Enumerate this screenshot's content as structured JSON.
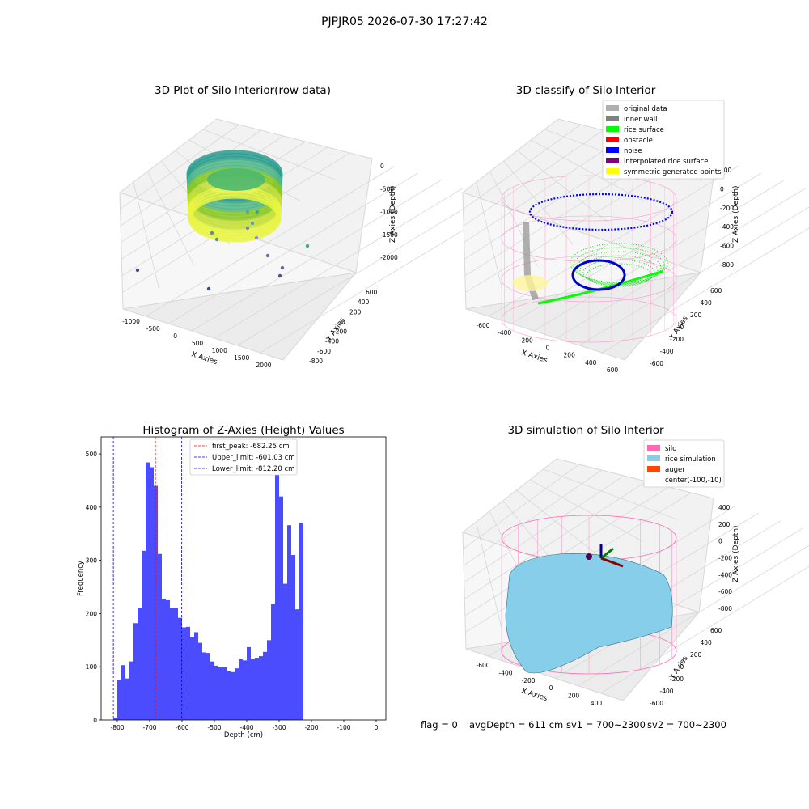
{
  "suptitle": "PJPJR05 2026-07-30 17:27:42",
  "panels": {
    "raw": {
      "title": "3D Plot of Silo Interior(row data)",
      "xlabel": "X Axies",
      "ylabel": "Y Axies",
      "zlabel": "Z Axies (Depth)",
      "xticks": [
        "-1000",
        "-500",
        "0",
        "500",
        "1000",
        "1500",
        "2000"
      ],
      "yticks": [
        "600",
        "400",
        "200",
        "0",
        "-200",
        "-400",
        "-600",
        "-800"
      ],
      "zticks": [
        "0",
        "-500",
        "-1000",
        "-1500",
        "-2000"
      ]
    },
    "classify": {
      "title": "3D classify of Silo Interior",
      "xlabel": "X Axies",
      "ylabel": "Y Axies",
      "zlabel": "Z Axies (Depth)",
      "xticks": [
        "-600",
        "-400",
        "-200",
        "0",
        "200",
        "400",
        "600"
      ],
      "yticks": [
        "600",
        "400",
        "200",
        "0",
        "-200",
        "-400",
        "-600"
      ],
      "zticks": [
        "200",
        "0",
        "-200",
        "-400",
        "-600",
        "-800"
      ],
      "legend": [
        {
          "label": "original data",
          "color": "#b0b0b0"
        },
        {
          "label": "inner wall",
          "color": "#808080"
        },
        {
          "label": "rice surface",
          "color": "#00ff00"
        },
        {
          "label": "obstacle",
          "color": "#ff0000"
        },
        {
          "label": "noise",
          "color": "#0000ff"
        },
        {
          "label": "interpolated rice surface",
          "color": "#800080"
        },
        {
          "label": "symmetric generated points",
          "color": "#ffff00"
        }
      ]
    },
    "simulation": {
      "title": "3D simulation of Silo Interior",
      "xlabel": "X Axies",
      "ylabel": "Y Axies",
      "zlabel": "Z Axies (Depth)",
      "xticks": [
        "-600",
        "-400",
        "-200",
        "0",
        "200",
        "400"
      ],
      "yticks": [
        "600",
        "400",
        "200",
        "0",
        "-200",
        "-400",
        "-600"
      ],
      "zticks": [
        "400",
        "200",
        "0",
        "-200",
        "-400",
        "-600",
        "-800"
      ],
      "legend": [
        {
          "label": "silo",
          "color": "#ff69b4"
        },
        {
          "label": "rice simulation",
          "color": "#87ceeb"
        },
        {
          "label": "auger",
          "color": "#ff4500"
        },
        {
          "label": "center(-100,-10)",
          "color": ""
        }
      ]
    }
  },
  "status_line": {
    "flag": "flag = 0",
    "avg_depth": "avgDepth = 611 cm",
    "sv1": "sv1 = 700~2300",
    "sv2": "sv2 = 700~2300"
  },
  "chart_data": {
    "type": "bar",
    "title": "Histogram of Z-Axies (Height) Values",
    "xlabel": "Depth (cm)",
    "ylabel": "Frequency",
    "xlim": [
      -850,
      30
    ],
    "ylim": [
      0,
      532
    ],
    "xticks": [
      -800,
      -700,
      -600,
      -500,
      -400,
      -300,
      -200,
      -100,
      0
    ],
    "yticks": [
      0,
      100,
      200,
      300,
      400,
      500
    ],
    "bin_width": 12.5,
    "bar_color": "#0000ff",
    "bins": [
      {
        "x": -812.5,
        "value": 4
      },
      {
        "x": -800,
        "value": 76
      },
      {
        "x": -787.5,
        "value": 103
      },
      {
        "x": -775,
        "value": 78
      },
      {
        "x": -762.5,
        "value": 110
      },
      {
        "x": -750,
        "value": 182
      },
      {
        "x": -737.5,
        "value": 211
      },
      {
        "x": -725,
        "value": 318
      },
      {
        "x": -712.5,
        "value": 484
      },
      {
        "x": -700,
        "value": 475
      },
      {
        "x": -687.5,
        "value": 440
      },
      {
        "x": -675,
        "value": 312
      },
      {
        "x": -662.5,
        "value": 228
      },
      {
        "x": -650,
        "value": 225
      },
      {
        "x": -637.5,
        "value": 210
      },
      {
        "x": -625,
        "value": 210
      },
      {
        "x": -612.5,
        "value": 192
      },
      {
        "x": -600,
        "value": 174
      },
      {
        "x": -587.5,
        "value": 175
      },
      {
        "x": -575,
        "value": 155
      },
      {
        "x": -562.5,
        "value": 165
      },
      {
        "x": -550,
        "value": 145
      },
      {
        "x": -537.5,
        "value": 127
      },
      {
        "x": -525,
        "value": 126
      },
      {
        "x": -512.5,
        "value": 110
      },
      {
        "x": -500,
        "value": 102
      },
      {
        "x": -487.5,
        "value": 100
      },
      {
        "x": -475,
        "value": 99
      },
      {
        "x": -462.5,
        "value": 92
      },
      {
        "x": -450,
        "value": 90
      },
      {
        "x": -437.5,
        "value": 97
      },
      {
        "x": -425,
        "value": 114
      },
      {
        "x": -412.5,
        "value": 112
      },
      {
        "x": -400,
        "value": 137
      },
      {
        "x": -387.5,
        "value": 115
      },
      {
        "x": -375,
        "value": 117
      },
      {
        "x": -362.5,
        "value": 120
      },
      {
        "x": -350,
        "value": 128
      },
      {
        "x": -337.5,
        "value": 150
      },
      {
        "x": -325,
        "value": 218
      },
      {
        "x": -312.5,
        "value": 508
      },
      {
        "x": -300,
        "value": 420
      },
      {
        "x": -287.5,
        "value": 256
      },
      {
        "x": -275,
        "value": 366
      },
      {
        "x": -262.5,
        "value": 310
      },
      {
        "x": -250,
        "value": 208
      },
      {
        "x": -237.5,
        "value": 370
      }
    ],
    "vlines": [
      {
        "label": "first_peak: -682.25 cm",
        "x": -682.25,
        "color": "#ff0000"
      },
      {
        "label": "Upper_limit: -601.03 cm",
        "x": -601.03,
        "color": "#0000ff"
      },
      {
        "label": "Lower_limit: -812.20 cm",
        "x": -812.2,
        "color": "#0000ff"
      }
    ]
  }
}
